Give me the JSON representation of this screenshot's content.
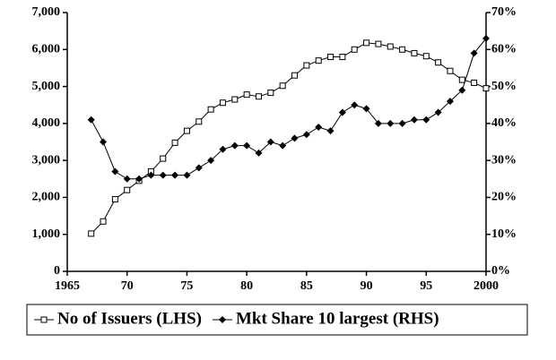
{
  "chart_data": {
    "type": "line",
    "x": [
      1967,
      1968,
      1969,
      1970,
      1971,
      1972,
      1973,
      1974,
      1975,
      1976,
      1977,
      1978,
      1979,
      1980,
      1981,
      1982,
      1983,
      1984,
      1985,
      1986,
      1987,
      1988,
      1989,
      1990,
      1991,
      1992,
      1993,
      1994,
      1995,
      1996,
      1997,
      1998,
      1999,
      2000
    ],
    "series": [
      {
        "name": "No of Issuers (LHS)",
        "color": "#000000",
        "marker": "square",
        "values": [
          1020,
          1350,
          1950,
          2200,
          2450,
          2700,
          3050,
          3480,
          3800,
          4050,
          4380,
          4560,
          4650,
          4780,
          4730,
          4830,
          5020,
          5300,
          5570,
          5700,
          5800,
          5800,
          6000,
          6180,
          6150,
          6080,
          6000,
          5900,
          5820,
          5650,
          5420,
          5180,
          5100,
          4950
        ]
      },
      {
        "name": "Mkt Share 10 largest (RHS)",
        "color": "#000000",
        "marker": "diamond",
        "axis": "y2",
        "values": [
          41,
          35,
          27,
          25,
          25,
          26,
          26,
          26,
          26,
          28,
          30,
          33,
          34,
          34,
          32,
          35,
          34,
          36,
          37,
          39,
          38,
          43,
          45,
          44,
          40,
          40,
          40,
          41,
          41,
          43,
          46,
          49,
          59,
          63
        ]
      }
    ],
    "xlim": [
      1965,
      2000
    ],
    "xticks": [
      1965,
      {
        "value": 1970,
        "label": "70"
      },
      {
        "value": 1975,
        "label": "75"
      },
      {
        "value": 1980,
        "label": "80"
      },
      {
        "value": 1985,
        "label": "85"
      },
      {
        "value": 1990,
        "label": "90"
      },
      {
        "value": 1995,
        "label": "95"
      },
      2000
    ],
    "ylim": [
      0,
      7000
    ],
    "yticks": [
      0,
      {
        "value": 1000,
        "label": "1,000"
      },
      {
        "value": 2000,
        "label": "2,000"
      },
      {
        "value": 3000,
        "label": "3,000"
      },
      {
        "value": 4000,
        "label": "4,000"
      },
      {
        "value": 5000,
        "label": "5,000"
      },
      {
        "value": 6000,
        "label": "6,000"
      },
      {
        "value": 7000,
        "label": "7,000"
      }
    ],
    "y2lim": [
      0,
      70
    ],
    "y2ticks": [
      {
        "value": 0,
        "label": "0%"
      },
      {
        "value": 10,
        "label": "10%"
      },
      {
        "value": 20,
        "label": "20%"
      },
      {
        "value": 30,
        "label": "30%"
      },
      {
        "value": 40,
        "label": "40%"
      },
      {
        "value": 50,
        "label": "50%"
      },
      {
        "value": 60,
        "label": "60%"
      },
      {
        "value": 70,
        "label": "70%"
      }
    ],
    "grid": false,
    "legend": "bottom"
  }
}
